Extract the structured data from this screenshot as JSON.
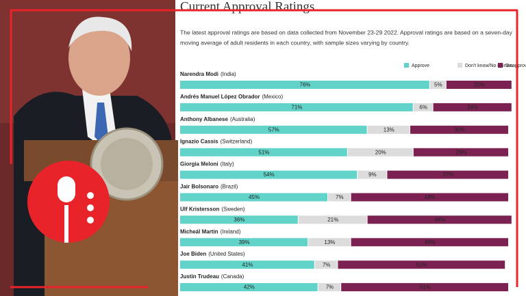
{
  "chart_data": {
    "type": "stacked-bar-horizontal",
    "title": "Current Approval Ratings",
    "subtitle": [
      "The latest approval ratings are based on data collected from November 23-29 2022. Approval ratings are based on a seven-day",
      "moving average of adult residents in each country, with sample sizes varying by country."
    ],
    "categories": [
      "Narendra Modi",
      "Andrés Manuel López Obrador",
      "Anthony Albanese",
      "Ignazio Cassis",
      "Giorgia Meloni",
      "Jair Bolsonaro",
      "Ulf Kristersson",
      "Micheál Martin",
      "Joe Biden",
      "Justin Trudeau"
    ],
    "countries": [
      "(India)",
      "(Mexico)",
      "(Australia)",
      "(Switzerland)",
      "(Italy)",
      "(Brazil)",
      "(Sweden)",
      "(Ireland)",
      "(United States)",
      "(Canada)"
    ],
    "series": [
      {
        "name": "Approve",
        "color": "#62d3c9",
        "values": [
          76,
          71,
          57,
          51,
          54,
          45,
          36,
          39,
          41,
          42
        ],
        "value_labels": [
          "76%",
          "71%",
          "57%",
          "51%",
          "54%",
          "45%",
          "36%",
          "39%",
          "41%",
          "42%"
        ]
      },
      {
        "name": "Don't know/No opinion",
        "color": "#dcdcdc",
        "values": [
          5,
          6,
          13,
          20,
          9,
          7,
          21,
          13,
          7,
          7
        ],
        "value_labels": [
          "5%",
          "6%",
          "13%",
          "20%",
          "9%",
          "7%",
          "21%",
          "13%",
          "7%",
          "7%"
        ]
      },
      {
        "name": "Disapprove",
        "color": "#7c2252",
        "values": [
          20,
          24,
          30,
          29,
          37,
          48,
          44,
          48,
          51,
          51
        ],
        "value_labels": [
          "20%",
          "24%",
          "30%",
          "29%",
          "37%",
          "48%",
          "44%",
          "48%",
          "51%",
          "51%"
        ]
      }
    ],
    "xlim": [
      0,
      100
    ]
  }
}
